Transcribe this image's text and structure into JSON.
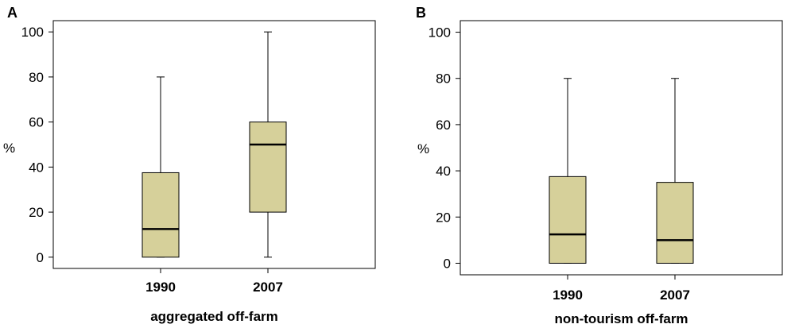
{
  "chart_data": [
    {
      "panel": "A",
      "type": "box",
      "ylabel": "%",
      "xlabel": "aggregated off-farm",
      "ylim": [
        -5,
        105
      ],
      "yticks": [
        0,
        20,
        40,
        60,
        80,
        100
      ],
      "categories": [
        "1990",
        "2007"
      ],
      "boxes": [
        {
          "category": "1990",
          "min": 0,
          "q1": 0,
          "median": 12.5,
          "q3": 37.5,
          "max": 80
        },
        {
          "category": "2007",
          "min": 0,
          "q1": 20,
          "median": 50,
          "q3": 60,
          "max": 100
        }
      ],
      "grid": false,
      "box_color": "#d6d09a"
    },
    {
      "panel": "B",
      "type": "box",
      "ylabel": "%",
      "xlabel": "non-tourism off-farm",
      "ylim": [
        -5,
        105
      ],
      "yticks": [
        0,
        20,
        40,
        60,
        80,
        100
      ],
      "categories": [
        "1990",
        "2007"
      ],
      "boxes": [
        {
          "category": "1990",
          "min": 0,
          "q1": 0,
          "median": 12.5,
          "q3": 37.5,
          "max": 80
        },
        {
          "category": "2007",
          "min": 0,
          "q1": 0,
          "median": 10,
          "q3": 35,
          "max": 80
        }
      ],
      "grid": false,
      "box_color": "#d6d09a"
    }
  ]
}
